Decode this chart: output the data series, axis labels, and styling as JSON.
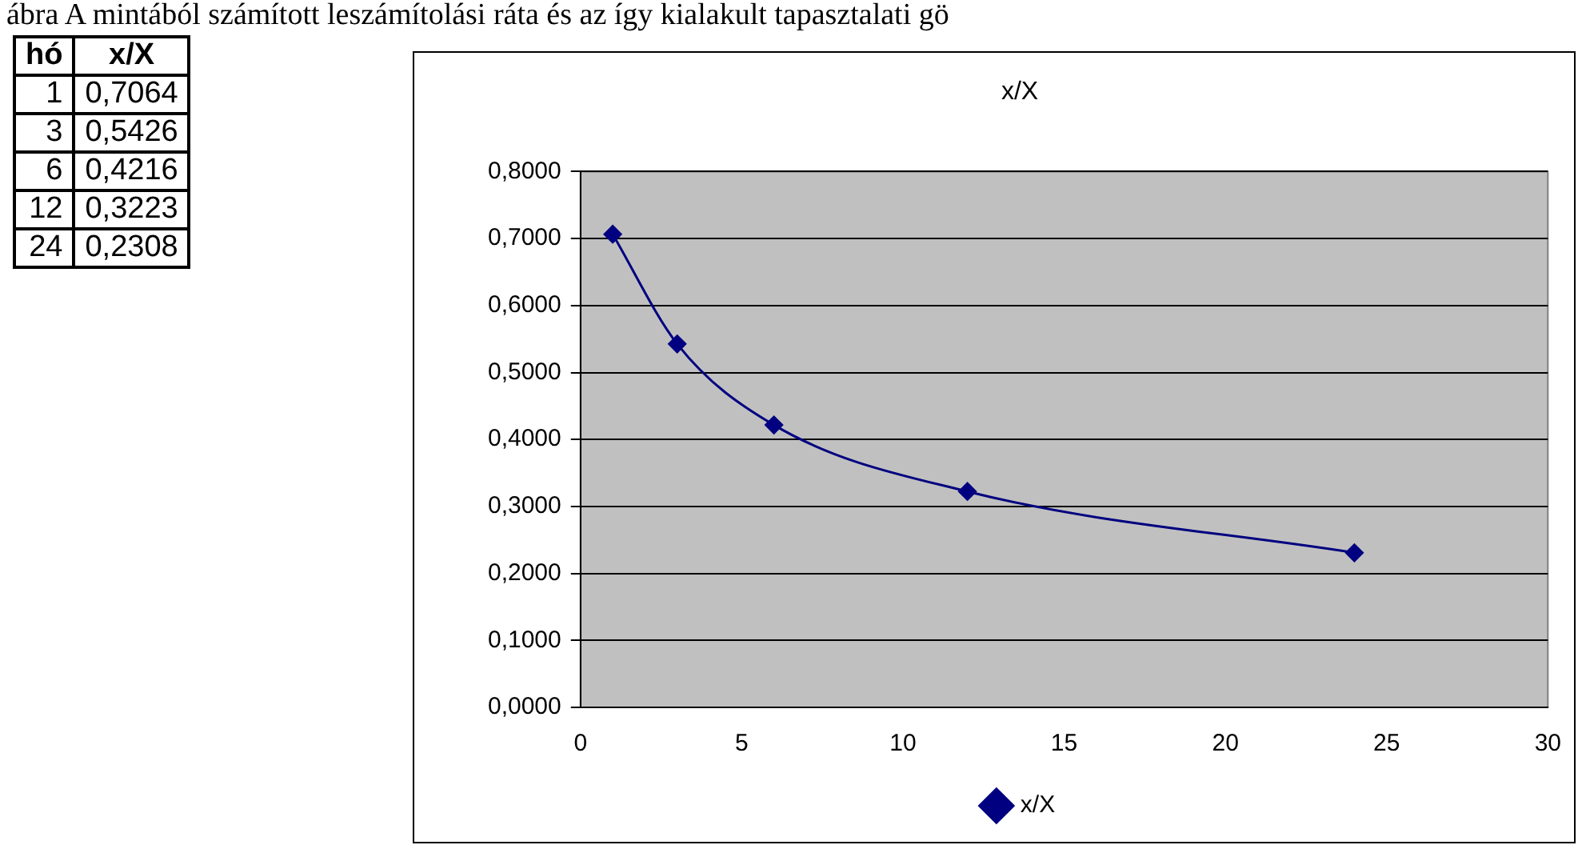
{
  "chart_data": [
    {
      "type": "other",
      "annotations": [
        "ábra A mintából számított leszámítolási ráta és az így kialakult tapasztalati gö"
      ],
      "categories": [
        "hó",
        "x/X"
      ],
      "cell_labels": [
        [
          "1",
          "0,7064"
        ],
        [
          "3",
          "0,5426"
        ],
        [
          "6",
          "0,4216"
        ],
        [
          "12",
          "0,3223"
        ],
        [
          "24",
          "0,2308"
        ]
      ]
    },
    {
      "type": "line",
      "title": "x/X",
      "x": [
        1,
        3,
        6,
        12,
        24
      ],
      "series": [
        {
          "name": "x/X",
          "color": "#000080",
          "values": [
            0.7064,
            0.5426,
            0.4216,
            0.3223,
            0.2308
          ]
        }
      ],
      "xlim": [
        0,
        30
      ],
      "xticks": [
        0,
        5,
        10,
        15,
        20,
        25,
        30
      ],
      "ylim": [
        0,
        0.8
      ],
      "yticks": [
        {
          "value": 0,
          "label": "0,0000"
        },
        {
          "value": 0.1,
          "label": "0,1000"
        },
        {
          "value": 0.2,
          "label": "0,2000"
        },
        {
          "value": 0.3,
          "label": "0,3000"
        },
        {
          "value": 0.4,
          "label": "0,4000"
        },
        {
          "value": 0.5,
          "label": "0,5000"
        },
        {
          "value": 0.6,
          "label": "0,6000"
        },
        {
          "value": 0.7,
          "label": "0,7000"
        },
        {
          "value": 0.8,
          "label": "0,8000"
        }
      ],
      "grid": "y",
      "legend": "bottom",
      "marker": "diamond",
      "line_style": "solid"
    }
  ]
}
